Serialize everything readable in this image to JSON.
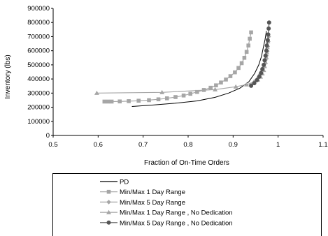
{
  "chart_data": {
    "type": "line",
    "xlabel": "Fraction of On-Time Orders",
    "ylabel": "Inventory (lbs)",
    "xlim": [
      0.5,
      1.1
    ],
    "ylim": [
      0,
      900000
    ],
    "x_ticks": [
      "0.5",
      "0.6",
      "0.7",
      "0.8",
      "0.9",
      "1",
      "1.1"
    ],
    "y_ticks": [
      "0",
      "100000",
      "200000",
      "300000",
      "400000",
      "500000",
      "600000",
      "700000",
      "800000",
      "900000"
    ],
    "grid": false,
    "legend_position": "bottom",
    "series": [
      {
        "name": "PD",
        "marker": "none",
        "color": "#000000",
        "points": [
          [
            0.675,
            205000
          ],
          [
            0.72,
            215000
          ],
          [
            0.77,
            228000
          ],
          [
            0.82,
            245000
          ],
          [
            0.86,
            270000
          ],
          [
            0.89,
            300000
          ],
          [
            0.915,
            335000
          ],
          [
            0.935,
            380000
          ],
          [
            0.948,
            440000
          ],
          [
            0.957,
            500000
          ],
          [
            0.963,
            560000
          ],
          [
            0.967,
            620000
          ],
          [
            0.971,
            680000
          ],
          [
            0.974,
            740000
          ]
        ]
      },
      {
        "name": "Min/Max 1 Day Range",
        "marker": "square",
        "color": "#a6a6a6",
        "points": [
          [
            0.614,
            240000
          ],
          [
            0.622,
            240000
          ],
          [
            0.63,
            240000
          ],
          [
            0.648,
            241000
          ],
          [
            0.668,
            243000
          ],
          [
            0.69,
            246000
          ],
          [
            0.713,
            250000
          ],
          [
            0.734,
            256000
          ],
          [
            0.753,
            263000
          ],
          [
            0.772,
            272000
          ],
          [
            0.79,
            283000
          ],
          [
            0.805,
            295000
          ],
          [
            0.82,
            308000
          ],
          [
            0.835,
            322000
          ],
          [
            0.85,
            338000
          ],
          [
            0.862,
            355000
          ],
          [
            0.873,
            375000
          ],
          [
            0.884,
            396000
          ],
          [
            0.894,
            420000
          ],
          [
            0.904,
            447000
          ],
          [
            0.912,
            478000
          ],
          [
            0.919,
            512000
          ],
          [
            0.925,
            550000
          ],
          [
            0.93,
            592000
          ],
          [
            0.934,
            637000
          ],
          [
            0.937,
            685000
          ],
          [
            0.94,
            730000
          ]
        ]
      },
      {
        "name": "Min/Max 5 Day Range",
        "marker": "diamond",
        "color": "#a6a6a6",
        "points": [
          [
            0.94,
            360000
          ],
          [
            0.946,
            373000
          ],
          [
            0.951,
            390000
          ],
          [
            0.956,
            410000
          ],
          [
            0.96,
            432000
          ],
          [
            0.964,
            455000
          ],
          [
            0.967,
            480000
          ],
          [
            0.97,
            507000
          ],
          [
            0.972,
            535000
          ],
          [
            0.974,
            565000
          ],
          [
            0.976,
            597000
          ],
          [
            0.977,
            630000
          ],
          [
            0.978,
            665000
          ],
          [
            0.979,
            700000
          ]
        ]
      },
      {
        "name": "Min/Max 1 Day Range , No Dedication",
        "marker": "triangle",
        "color": "#a6a6a6",
        "points": [
          [
            0.597,
            300000
          ],
          [
            0.742,
            305000
          ],
          [
            0.86,
            325000
          ],
          [
            0.906,
            345000
          ],
          [
            0.93,
            360000
          ],
          [
            0.946,
            378000
          ],
          [
            0.955,
            395000
          ],
          [
            0.961,
            415000
          ],
          [
            0.965,
            438000
          ],
          [
            0.968,
            462000
          ],
          [
            0.97,
            490000
          ],
          [
            0.972,
            520000
          ],
          [
            0.974,
            553000
          ],
          [
            0.975,
            588000
          ],
          [
            0.976,
            625000
          ],
          [
            0.977,
            665000
          ]
        ]
      },
      {
        "name": "Min/Max 5 Day Range , No Dedication",
        "marker": "circle",
        "color": "#555555",
        "points": [
          [
            0.94,
            352000
          ],
          [
            0.947,
            370000
          ],
          [
            0.953,
            392000
          ],
          [
            0.958,
            416000
          ],
          [
            0.962,
            442000
          ],
          [
            0.965,
            470000
          ],
          [
            0.968,
            500000
          ],
          [
            0.97,
            532000
          ],
          [
            0.972,
            565000
          ],
          [
            0.974,
            600000
          ],
          [
            0.975,
            637000
          ],
          [
            0.977,
            675000
          ],
          [
            0.978,
            715000
          ],
          [
            0.979,
            757000
          ],
          [
            0.98,
            800000
          ]
        ]
      }
    ]
  }
}
